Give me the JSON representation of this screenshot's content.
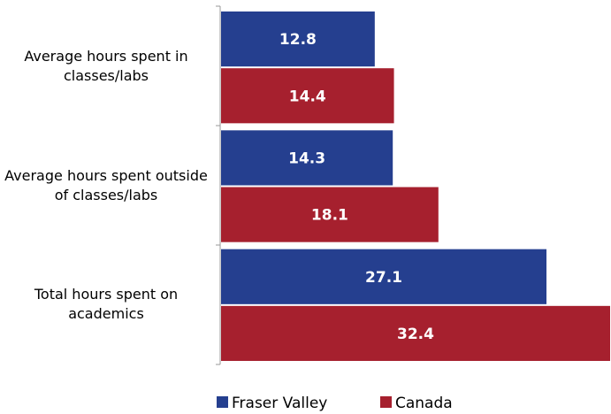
{
  "chart_data": {
    "type": "bar",
    "orientation": "horizontal",
    "categories": [
      "Average hours spent in classes/labs",
      "Average hours spent outside of classes/labs",
      "Total hours spent on academics"
    ],
    "series": [
      {
        "name": "Fraser Valley",
        "color": "#253f8f",
        "values": [
          12.8,
          14.3,
          27.1
        ]
      },
      {
        "name": "Canada",
        "color": "#a6202e",
        "values": [
          14.4,
          18.1,
          32.4
        ]
      }
    ],
    "legend": "bottom"
  }
}
